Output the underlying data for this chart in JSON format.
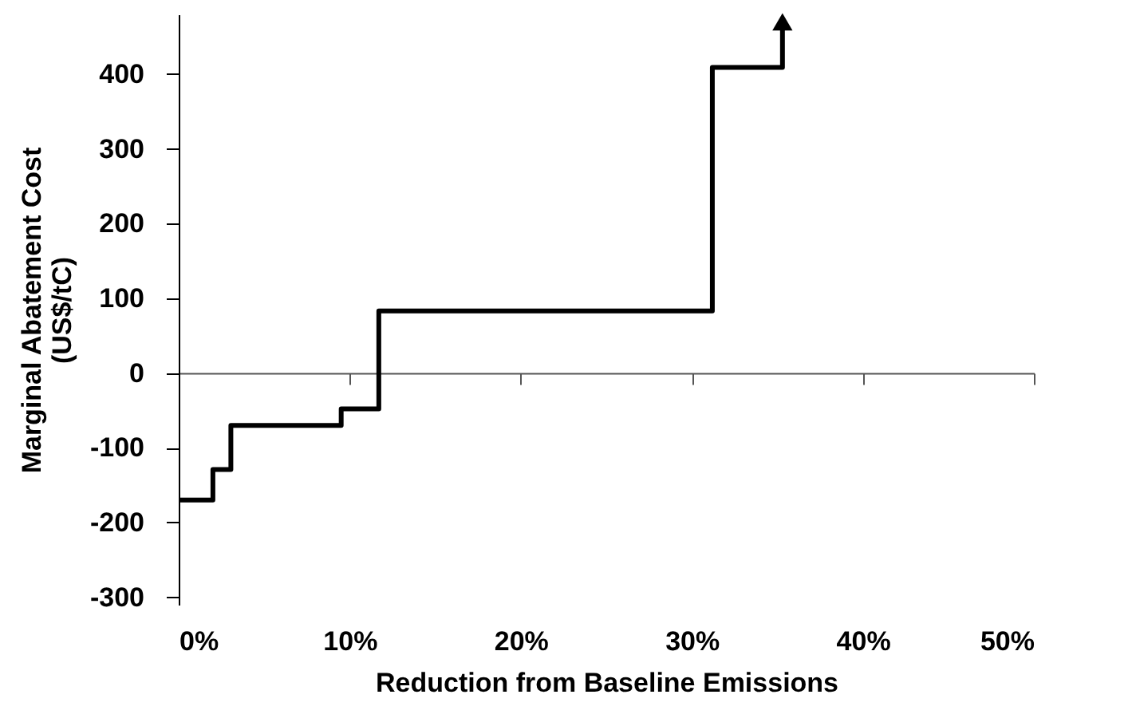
{
  "chart_data": {
    "type": "step",
    "xlabel": "Reduction from Baseline Emissions",
    "ylabel": "Marginal Abatement Cost\n(US$/tC)",
    "x": [
      0,
      2.0,
      3.05,
      9.5,
      11.7,
      31.2,
      35.3,
      35.3
    ],
    "series": [
      {
        "color": "#000000",
        "values": [
          -170,
          -129,
          -70,
          -48,
          83,
          409,
          409,
          470
        ]
      }
    ],
    "xlim": [
      0,
      50
    ],
    "xticks": [
      {
        "value": 0,
        "label": "0%"
      },
      {
        "value": 10,
        "label": "10%"
      },
      {
        "value": 20,
        "label": "20%"
      },
      {
        "value": 30,
        "label": "30%"
      },
      {
        "value": 40,
        "label": "40%"
      },
      {
        "value": 50,
        "label": "50%"
      }
    ],
    "ylim": [
      -310,
      480
    ],
    "yticks": [
      -300,
      -200,
      -100,
      0,
      100,
      200,
      300,
      400
    ],
    "marker": "none",
    "line_style": "solid"
  }
}
